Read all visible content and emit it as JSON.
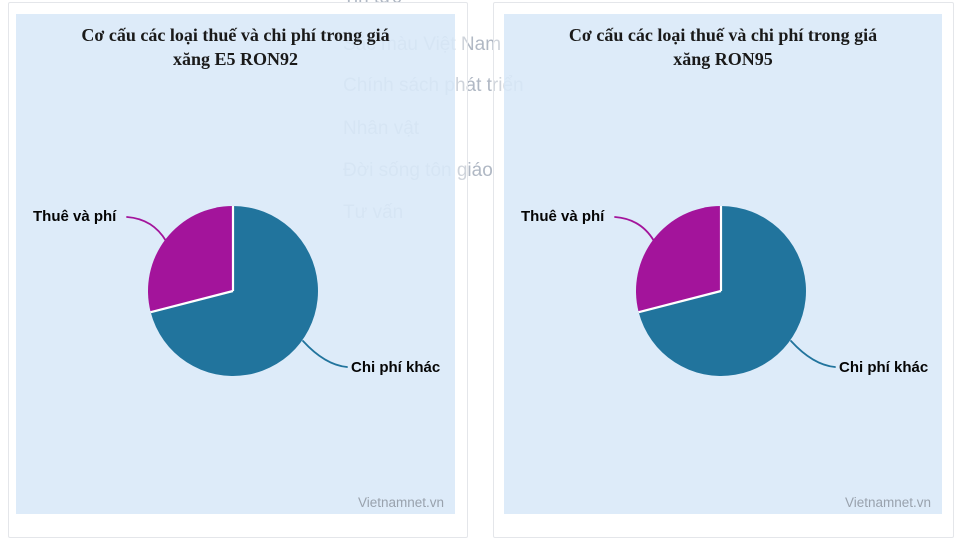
{
  "background_menu": {
    "text_color": "#b0b8c4",
    "items": [
      {
        "label": "Tin tức"
      },
      {
        "label": "Sắc màu Việt Nam"
      },
      {
        "label": "Chính sách phát triển"
      },
      {
        "label": "Nhân vật"
      },
      {
        "label": "Đời sống tôn giáo"
      },
      {
        "label": "Tư vấn"
      }
    ]
  },
  "charts": [
    {
      "title_line1": "Cơ cấu các loại thuế và chi phí trong giá",
      "title_line2": "xăng E5 RON92",
      "watermark": "Vietnamnet.vn",
      "slices": [
        {
          "label": "Chi phí khác",
          "value": 71,
          "color": "#21749d"
        },
        {
          "label": "Thuê và phí",
          "value": 29,
          "color": "#a3149b"
        }
      ]
    },
    {
      "title_line1": "Cơ cấu các loại thuế và chi phí trong giá",
      "title_line2": "xăng RON95",
      "watermark": "Vietnamnet.vn",
      "slices": [
        {
          "label": "Chi phí khác",
          "value": 71,
          "color": "#21749d"
        },
        {
          "label": "Thuê và phí",
          "value": 29,
          "color": "#a3149b"
        }
      ]
    }
  ],
  "chart_data": [
    {
      "type": "pie",
      "title": "Cơ cấu các loại thuế và chi phí trong giá xăng E5 RON92",
      "labels": [
        "Thuê và phí",
        "Chi phí khác"
      ],
      "values": [
        29,
        71
      ],
      "unit": "percent, estimated from arc angles (no numeric data labels shown)",
      "colors": [
        "#a3149b",
        "#21749d"
      ],
      "start_angle": "12 o'clock, clockwise",
      "legend_position": "callout labels with leader lines",
      "source_watermark": "Vietnamnet.vn"
    },
    {
      "type": "pie",
      "title": "Cơ cấu các loại thuế và chi phí trong giá xăng RON95",
      "labels": [
        "Thuê và phí",
        "Chi phí khác"
      ],
      "values": [
        29,
        71
      ],
      "unit": "percent, estimated from arc angles (no numeric data labels shown)",
      "colors": [
        "#a3149b",
        "#21749d"
      ],
      "start_angle": "12 o'clock, clockwise",
      "legend_position": "callout labels with leader lines",
      "source_watermark": "Vietnamnet.vn"
    }
  ]
}
